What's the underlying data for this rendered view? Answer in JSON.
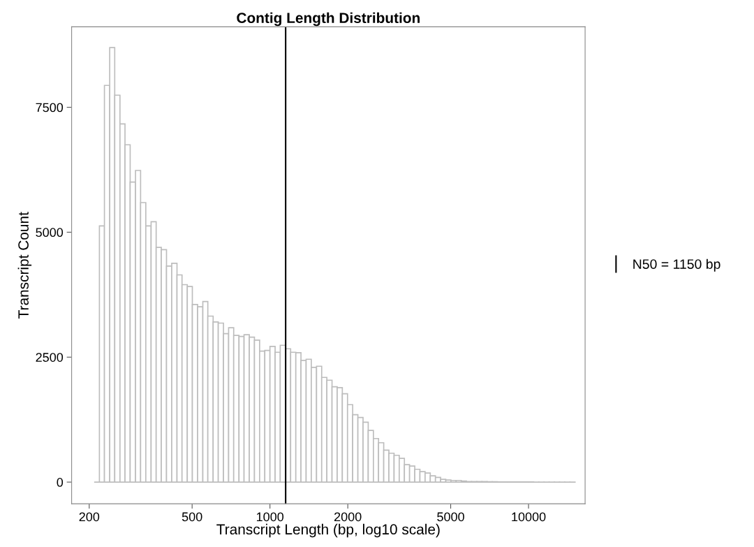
{
  "chart_data": {
    "type": "histogram",
    "title": "Contig Length Distribution",
    "xlabel": "Transcript Length (bp, log10 scale)",
    "ylabel": "Transcript Count",
    "bins": [
      209,
      219,
      229,
      240,
      251,
      263,
      275,
      288,
      302,
      316,
      331,
      347,
      363,
      380,
      398,
      417,
      437,
      457,
      479,
      501,
      525,
      550,
      575,
      603,
      631,
      661,
      692,
      724,
      759,
      794,
      832,
      871,
      912,
      955,
      1000,
      1047,
      1096,
      1148,
      1202,
      1259,
      1318,
      1380,
      1445,
      1514,
      1585,
      1660,
      1738,
      1820,
      1905,
      1995,
      2089,
      2188,
      2291,
      2399,
      2512,
      2630,
      2754,
      2884,
      3020,
      3162,
      3311,
      3467,
      3631,
      3802,
      3981,
      4169,
      4365,
      4571,
      4786,
      5012,
      5248,
      5495,
      5754,
      6026,
      6310,
      6607,
      6918,
      7244,
      7586,
      7943,
      8318,
      8710,
      9120,
      9550,
      10000,
      10471,
      10965,
      11482,
      12023,
      12589,
      13183,
      13804,
      14454,
      15136
    ],
    "values": [
      0,
      5125,
      7938,
      8695,
      7742,
      7168,
      6749,
      6003,
      6236,
      5593,
      5125,
      5209,
      4697,
      4650,
      4323,
      4379,
      4146,
      3950,
      3913,
      3554,
      3508,
      3614,
      3321,
      3204,
      3181,
      2971,
      3088,
      2934,
      2915,
      2948,
      2901,
      2840,
      2621,
      2635,
      2714,
      2598,
      2738,
      2668,
      2598,
      2588,
      2435,
      2458,
      2295,
      2318,
      2095,
      2039,
      1907,
      1889,
      1767,
      1549,
      1348,
      1292,
      1199,
      1035,
      872,
      788,
      639,
      578,
      536,
      476,
      350,
      322,
      257,
      210,
      182,
      126,
      93,
      56,
      42,
      33,
      33,
      20,
      10,
      10,
      10,
      10,
      8,
      6,
      5,
      4,
      3,
      3,
      2,
      2,
      2,
      1,
      1,
      1,
      1,
      1,
      1,
      1,
      1
    ],
    "color": "#bdbdbd",
    "log": "x",
    "xlim": [
      171,
      16550
    ],
    "xticks": [
      200,
      500,
      1000,
      2000,
      5000,
      10000
    ],
    "ylim": [
      -434,
      9110
    ],
    "yticks": [
      0,
      2500,
      5000,
      7500
    ],
    "grid": false,
    "ref_lines": [
      {
        "axis": "x",
        "value": 1150,
        "label": "N50 = 1150 bp",
        "color": "#000000"
      }
    ],
    "legend": "right"
  }
}
